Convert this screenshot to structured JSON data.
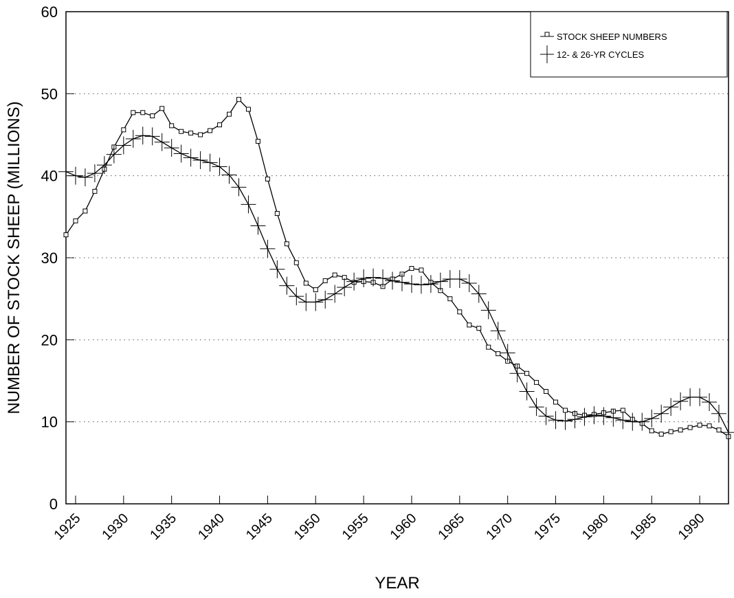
{
  "chart_data": {
    "type": "line",
    "x_label": "YEAR",
    "y_label": "NUMBER OF STOCK SHEEP (MILLIONS)",
    "x": [
      1924,
      1925,
      1926,
      1927,
      1928,
      1929,
      1930,
      1931,
      1932,
      1933,
      1934,
      1935,
      1936,
      1937,
      1938,
      1939,
      1940,
      1941,
      1942,
      1943,
      1944,
      1945,
      1946,
      1947,
      1948,
      1949,
      1950,
      1951,
      1952,
      1953,
      1954,
      1955,
      1956,
      1957,
      1958,
      1959,
      1960,
      1961,
      1962,
      1963,
      1964,
      1965,
      1966,
      1967,
      1968,
      1969,
      1970,
      1971,
      1972,
      1973,
      1974,
      1975,
      1976,
      1977,
      1978,
      1979,
      1980,
      1981,
      1982,
      1983,
      1984,
      1985,
      1986,
      1987,
      1988,
      1989,
      1990,
      1991,
      1992,
      1993
    ],
    "series": [
      {
        "name": "STOCK SHEEP NUMBERS",
        "color": "#000000",
        "marker": "square",
        "values": [
          32.8,
          34.5,
          35.7,
          38.1,
          40.8,
          43.5,
          45.6,
          47.7,
          47.7,
          47.3,
          48.2,
          46.1,
          45.4,
          45.2,
          45.0,
          45.5,
          46.2,
          47.5,
          49.3,
          48.1,
          44.2,
          39.6,
          35.4,
          31.7,
          29.4,
          26.9,
          26.1,
          27.2,
          27.9,
          27.6,
          27.0,
          27.1,
          27.0,
          26.5,
          27.4,
          28.0,
          28.7,
          28.5,
          27.0,
          26.0,
          25.0,
          23.4,
          21.8,
          21.4,
          19.1,
          18.3,
          17.4,
          16.8,
          15.9,
          14.8,
          13.7,
          12.4,
          11.4,
          11.0,
          10.8,
          10.9,
          11.1,
          11.3,
          11.4,
          10.3,
          9.8,
          8.9,
          8.5,
          8.8,
          9.0,
          9.3,
          9.6,
          9.5,
          9.0,
          8.2
        ]
      },
      {
        "name": "12- & 26-YR CYCLES",
        "color": "#000000",
        "marker": "plus",
        "values": [
          40.5,
          40.0,
          39.8,
          40.3,
          41.3,
          42.6,
          43.7,
          44.5,
          44.9,
          44.8,
          44.1,
          43.4,
          42.7,
          42.2,
          41.9,
          41.6,
          41.1,
          40.1,
          38.6,
          36.5,
          33.9,
          31.1,
          28.6,
          26.6,
          25.3,
          24.6,
          24.6,
          24.9,
          25.6,
          26.4,
          27.1,
          27.5,
          27.6,
          27.5,
          27.2,
          27.0,
          26.8,
          26.7,
          26.8,
          27.1,
          27.4,
          27.4,
          26.9,
          25.6,
          23.6,
          21.1,
          18.4,
          15.9,
          13.7,
          11.8,
          10.7,
          10.2,
          10.1,
          10.3,
          10.6,
          10.8,
          10.7,
          10.5,
          10.2,
          10.0,
          10.0,
          10.4,
          11.0,
          11.8,
          12.5,
          13.0,
          13.0,
          12.4,
          11.0,
          8.7
        ]
      }
    ],
    "xlim": [
      1924,
      1993
    ],
    "xticks": [
      1925,
      1930,
      1935,
      1940,
      1945,
      1950,
      1955,
      1960,
      1965,
      1970,
      1975,
      1980,
      1985,
      1990
    ],
    "ylim": [
      0,
      60
    ],
    "yticks": [
      0,
      10,
      20,
      30,
      40,
      50,
      60
    ],
    "grid": true,
    "legend": "upper right"
  }
}
